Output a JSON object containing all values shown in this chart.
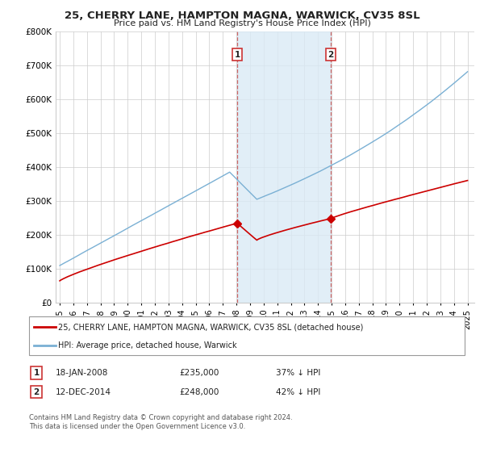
{
  "title": "25, CHERRY LANE, HAMPTON MAGNA, WARWICK, CV35 8SL",
  "subtitle": "Price paid vs. HM Land Registry's House Price Index (HPI)",
  "ylim": [
    0,
    800000
  ],
  "yticks": [
    0,
    100000,
    200000,
    300000,
    400000,
    500000,
    600000,
    700000,
    800000
  ],
  "ytick_labels": [
    "£0",
    "£100K",
    "£200K",
    "£300K",
    "£400K",
    "£500K",
    "£600K",
    "£700K",
    "£800K"
  ],
  "transaction1_date": "18-JAN-2008",
  "transaction1_price": 235000,
  "transaction1_label": "37% ↓ HPI",
  "transaction1_x": 2008.05,
  "transaction2_date": "12-DEC-2014",
  "transaction2_price": 248000,
  "transaction2_label": "42% ↓ HPI",
  "transaction2_x": 2014.93,
  "property_color": "#cc0000",
  "hpi_color": "#7ab0d4",
  "hpi_fill_color": "#daeaf5",
  "legend_property": "25, CHERRY LANE, HAMPTON MAGNA, WARWICK, CV35 8SL (detached house)",
  "legend_hpi": "HPI: Average price, detached house, Warwick",
  "footnote1": "Contains HM Land Registry data © Crown copyright and database right 2024.",
  "footnote2": "This data is licensed under the Open Government Licence v3.0.",
  "background_color": "#ffffff",
  "grid_color": "#cccccc"
}
